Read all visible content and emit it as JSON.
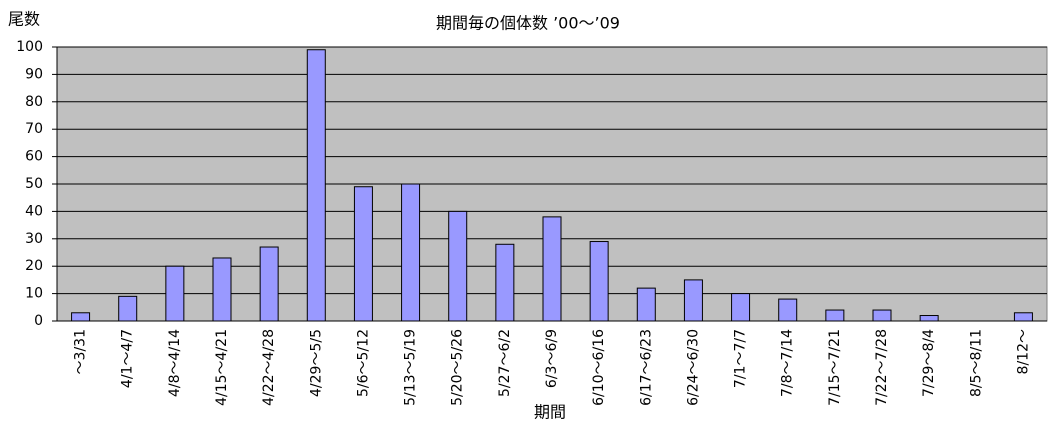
{
  "chart_data": {
    "type": "bar",
    "title": "期間毎の個体数 ’00～’09",
    "y_label": "尾数",
    "x_label": "期間",
    "categories": [
      "～3/31",
      "4/1～4/7",
      "4/8～4/14",
      "4/15～4/21",
      "4/22～4/28",
      "4/29～5/5",
      "5/6～5/12",
      "5/13～5/19",
      "5/20～5/26",
      "5/27～6/2",
      "6/3～6/9",
      "6/10～6/16",
      "6/17～6/23",
      "6/24～6/30",
      "7/1～7/7",
      "7/8～7/14",
      "7/15～7/21",
      "7/22～7/28",
      "7/29～8/4",
      "8/5～8/11",
      "8/12～"
    ],
    "values": [
      3,
      9,
      20,
      23,
      27,
      99,
      49,
      50,
      40,
      28,
      38,
      29,
      12,
      15,
      10,
      8,
      4,
      4,
      2,
      0,
      3
    ],
    "color": "#9999ff",
    "ylim": [
      0,
      100
    ],
    "yticks": [
      0,
      10,
      20,
      30,
      40,
      50,
      60,
      70,
      80,
      90,
      100
    ],
    "grid": true
  }
}
